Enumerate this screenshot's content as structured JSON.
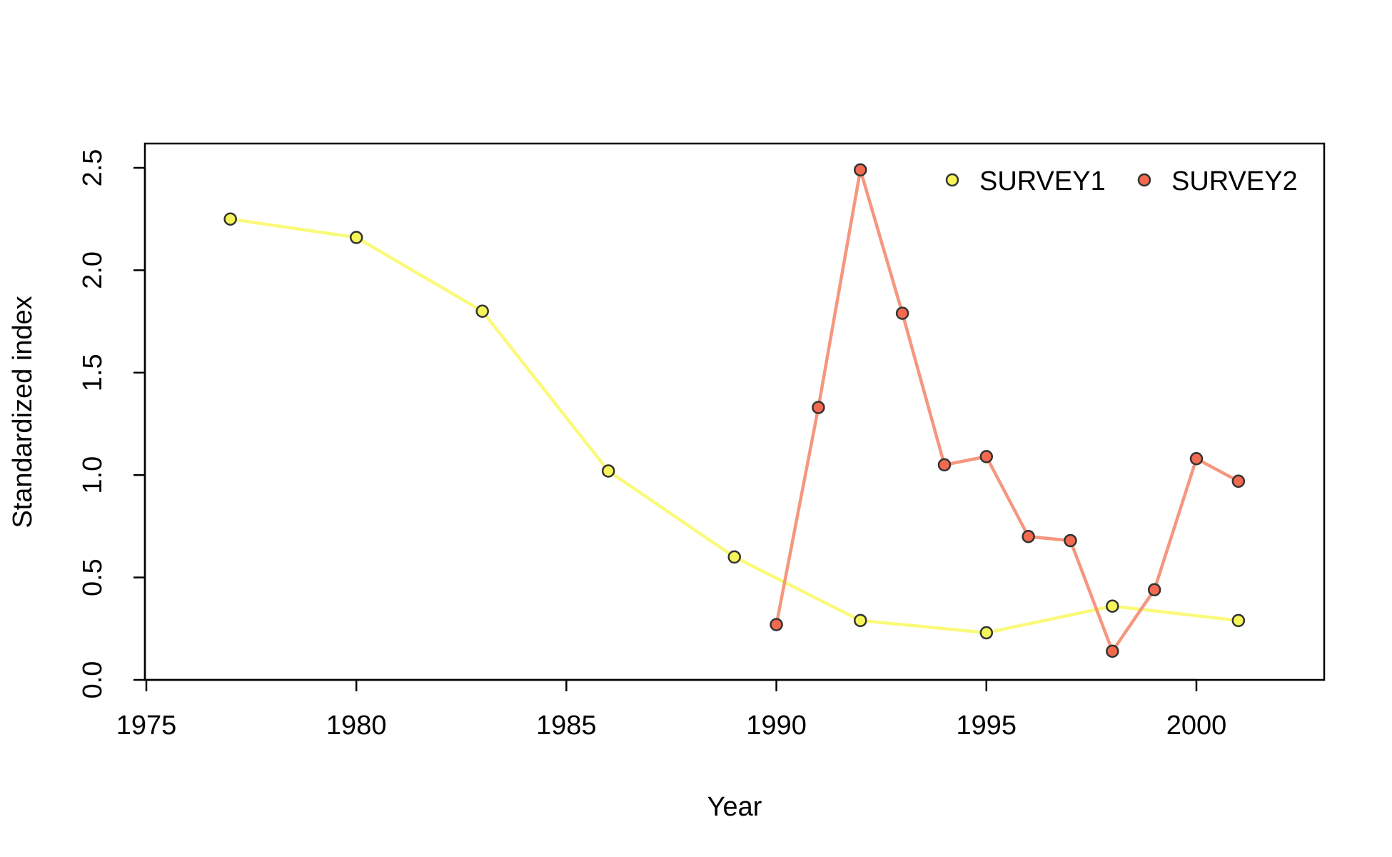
{
  "chart_data": {
    "type": "line",
    "title": "",
    "xlabel": "Year",
    "ylabel": "Standardized index",
    "xlim": [
      1975,
      2003
    ],
    "ylim": [
      0,
      2.6
    ],
    "xticks": [
      "1975",
      "1980",
      "1985",
      "1990",
      "1995",
      "2000"
    ],
    "yticks": [
      "0.0",
      "0.5",
      "1.0",
      "1.5",
      "2.0",
      "2.5"
    ],
    "legend_position": "top-right",
    "grid": false,
    "series": [
      {
        "name": "SURVEY1",
        "color": "#f5f55a",
        "line_color": "#fafa7a",
        "x": [
          1977,
          1980,
          1983,
          1986,
          1989,
          1992,
          1995,
          1998,
          2001
        ],
        "y": [
          2.25,
          2.16,
          1.8,
          1.02,
          0.6,
          0.29,
          0.23,
          0.36,
          0.29
        ]
      },
      {
        "name": "SURVEY2",
        "color": "#f26a4f",
        "line_color": "#f5977f",
        "x": [
          1990,
          1991,
          1992,
          1993,
          1994,
          1995,
          1996,
          1997,
          1998,
          1999,
          2000,
          2001
        ],
        "y": [
          0.27,
          1.33,
          2.49,
          1.79,
          1.05,
          1.09,
          0.7,
          0.68,
          0.14,
          0.44,
          1.08,
          0.97
        ]
      }
    ]
  }
}
